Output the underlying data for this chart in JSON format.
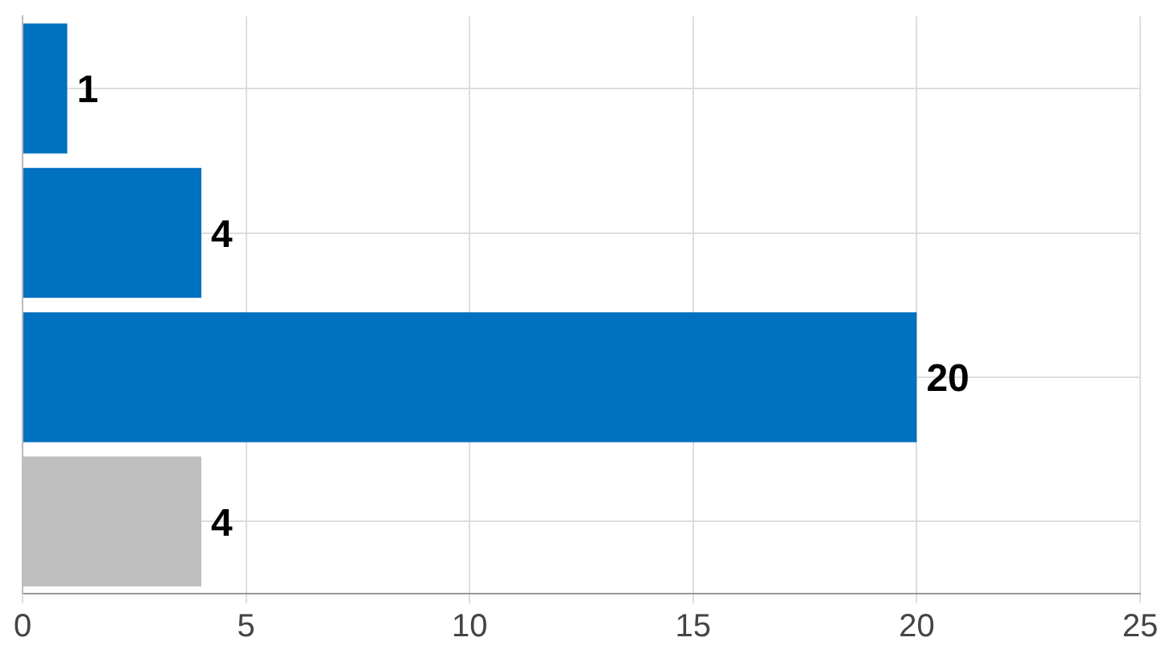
{
  "chart_data": {
    "type": "bar",
    "orientation": "horizontal",
    "categories": [
      null,
      null,
      null,
      null
    ],
    "values": [
      1,
      4,
      20,
      4
    ],
    "colors": [
      "#0070c0",
      "#0070c0",
      "#0070c0",
      "#bfbfbf"
    ],
    "xlim": [
      0,
      25
    ],
    "xticks": [
      0,
      5,
      10,
      15,
      20,
      25
    ],
    "grid": true,
    "data_labels": true,
    "legend": false
  }
}
